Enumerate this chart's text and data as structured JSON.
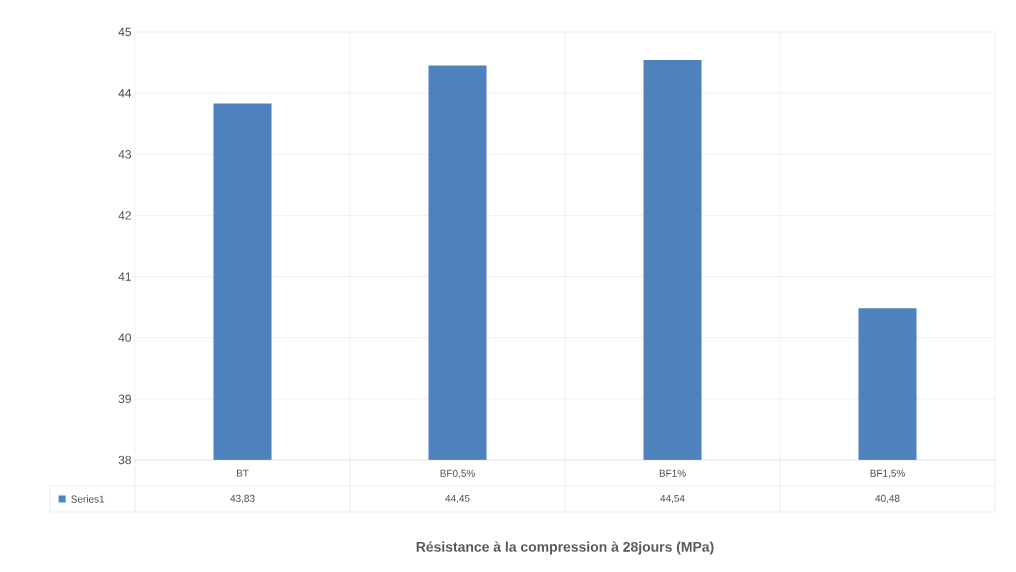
{
  "chart_data": {
    "type": "bar",
    "title": "Résistance à la compression à 28jours (MPa)",
    "categories": [
      "BT",
      "BF0,5%",
      "BF1%",
      "BF1,5%"
    ],
    "series": [
      {
        "name": "Series1",
        "color": "#4f81bd",
        "values": [
          43.83,
          44.45,
          44.54,
          40.48
        ]
      }
    ],
    "value_labels": [
      "43,83",
      "44,45",
      "44,54",
      "40,48"
    ],
    "ylim": [
      38,
      45
    ],
    "yticks": [
      38,
      39,
      40,
      41,
      42,
      43,
      44,
      45
    ],
    "grid": true,
    "legend": "bottom"
  }
}
